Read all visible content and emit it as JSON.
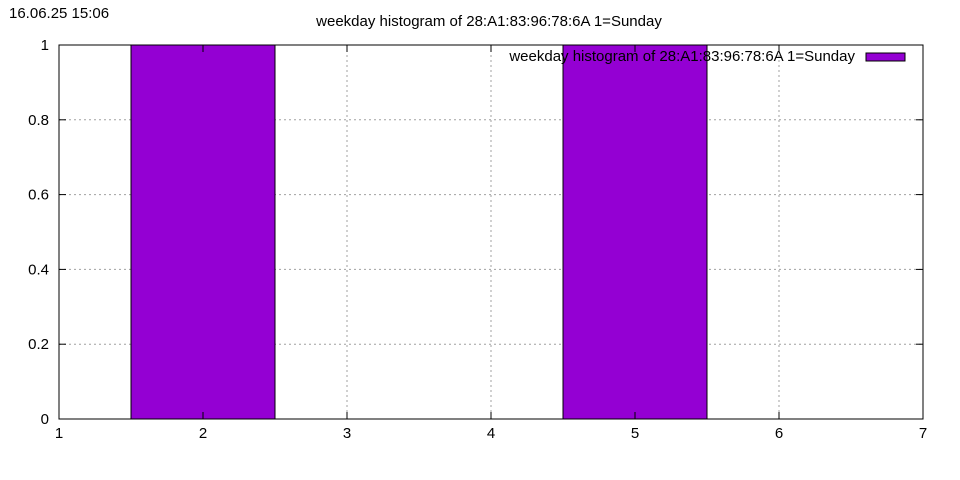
{
  "timestamp": "16.06.25 15:06",
  "chart_data": {
    "type": "bar",
    "title": "weekday histogram of 28:A1:83:96:78:6A 1=Sunday",
    "xlabel": "",
    "ylabel": "",
    "x": [
      2,
      5
    ],
    "values": [
      1,
      1
    ],
    "bar_width": 1,
    "xlim": [
      1,
      7
    ],
    "ylim": [
      0,
      1
    ],
    "xticks": [
      1,
      2,
      3,
      4,
      5,
      6,
      7
    ],
    "xtick_labels": [
      "1",
      "2",
      "3",
      "4",
      "5",
      "6",
      "7"
    ],
    "yticks": [
      0,
      0.2,
      0.4,
      0.6,
      0.8,
      1
    ],
    "ytick_labels": [
      "0",
      "0.2",
      "0.4",
      "0.6",
      "0.8",
      "1"
    ],
    "grid": true,
    "legend": {
      "placement": "top-right",
      "entries": [
        "weekday histogram of 28:A1:83:96:78:6A 1=Sunday"
      ]
    },
    "series": [
      {
        "name": "weekday histogram of 28:A1:83:96:78:6A 1=Sunday",
        "color": "#9400d3"
      }
    ]
  }
}
